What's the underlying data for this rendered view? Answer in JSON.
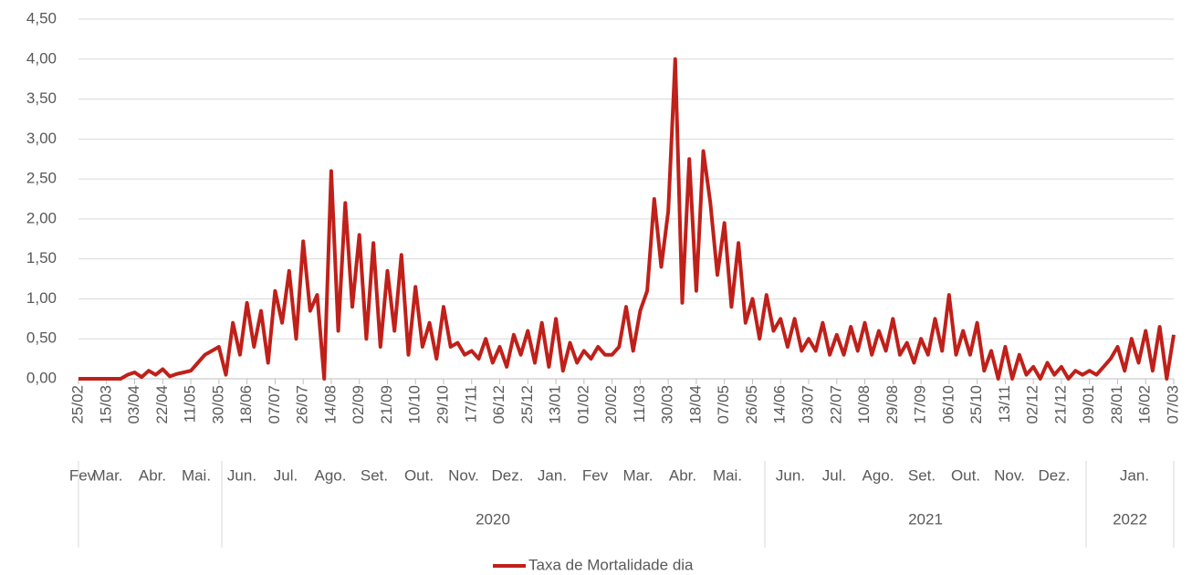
{
  "chart_data": {
    "type": "line",
    "categories": [
      "25/02",
      null,
      null,
      null,
      "15/03",
      null,
      null,
      null,
      "03/04",
      null,
      null,
      null,
      "22/04",
      null,
      null,
      null,
      "11/05",
      null,
      null,
      null,
      "30/05",
      null,
      null,
      null,
      "18/06",
      null,
      null,
      null,
      "07/07",
      null,
      null,
      null,
      "26/07",
      null,
      null,
      null,
      "14/08",
      null,
      null,
      null,
      "02/09",
      null,
      null,
      null,
      "21/09",
      null,
      null,
      null,
      "10/10",
      null,
      null,
      null,
      "29/10",
      null,
      null,
      null,
      "17/11",
      null,
      null,
      null,
      "06/12",
      null,
      null,
      null,
      "25/12",
      null,
      null,
      null,
      "13/01",
      null,
      null,
      null,
      "01/02",
      null,
      null,
      null,
      "20/02",
      null,
      null,
      null,
      "11/03",
      null,
      null,
      null,
      "30/03",
      null,
      null,
      null,
      "18/04",
      null,
      null,
      null,
      "07/05",
      null,
      null,
      null,
      "26/05",
      null,
      null,
      null,
      "14/06",
      null,
      null,
      null,
      "03/07",
      null,
      null,
      null,
      "22/07",
      null,
      null,
      null,
      "10/08",
      null,
      null,
      null,
      "29/08",
      null,
      null,
      null,
      "17/09",
      null,
      null,
      null,
      "06/10",
      null,
      null,
      null,
      "25/10",
      null,
      null,
      null,
      "13/11",
      null,
      null,
      null,
      "02/12",
      null,
      null,
      null,
      "21/12",
      null,
      null,
      null,
      "09/01",
      null,
      null,
      null,
      "28/01",
      null,
      null,
      null,
      "16/02",
      null,
      null,
      null,
      "07/03"
    ],
    "series": [
      {
        "name": "Taxa de Mortalidade dia",
        "color": "#c0201a",
        "values": [
          0,
          0,
          0,
          0,
          0,
          0,
          0,
          0.05,
          0.08,
          0.02,
          0.1,
          0.05,
          0.12,
          0.03,
          0.06,
          0.08,
          0.1,
          0.2,
          0.3,
          0.35,
          0.4,
          0.05,
          0.7,
          0.3,
          0.95,
          0.4,
          0.85,
          0.2,
          1.1,
          0.7,
          1.35,
          0.5,
          1.72,
          0.85,
          1.05,
          0,
          2.6,
          0.6,
          2.2,
          0.9,
          1.8,
          0.5,
          1.7,
          0.4,
          1.35,
          0.6,
          1.55,
          0.3,
          1.15,
          0.4,
          0.7,
          0.25,
          0.9,
          0.4,
          0.45,
          0.3,
          0.35,
          0.25,
          0.5,
          0.2,
          0.4,
          0.15,
          0.55,
          0.3,
          0.6,
          0.2,
          0.7,
          0.15,
          0.75,
          0.1,
          0.45,
          0.2,
          0.35,
          0.25,
          0.4,
          0.3,
          0.3,
          0.4,
          0.9,
          0.35,
          0.85,
          1.1,
          2.25,
          1.4,
          2.1,
          4.0,
          0.95,
          2.75,
          1.1,
          2.85,
          2.2,
          1.3,
          1.95,
          0.9,
          1.7,
          0.7,
          1.0,
          0.5,
          1.05,
          0.6,
          0.75,
          0.4,
          0.75,
          0.35,
          0.5,
          0.35,
          0.7,
          0.3,
          0.55,
          0.3,
          0.65,
          0.35,
          0.7,
          0.3,
          0.6,
          0.35,
          0.75,
          0.3,
          0.45,
          0.2,
          0.5,
          0.3,
          0.75,
          0.35,
          1.05,
          0.3,
          0.6,
          0.3,
          0.7,
          0.1,
          0.35,
          0,
          0.4,
          0,
          0.3,
          0.05,
          0.15,
          0,
          0.2,
          0.05,
          0.15,
          0,
          0.1,
          0.05,
          0.1,
          0.05,
          0.15,
          0.25,
          0.4,
          0.1,
          0.5,
          0.2,
          0.6,
          0.1,
          0.65,
          0,
          0.55
        ]
      }
    ],
    "months": [
      "Fev",
      "Mar.",
      "Abr.",
      "Mai.",
      "Jun.",
      "Jul.",
      "Ago.",
      "Set.",
      "Out.",
      "Nov.",
      "Dez.",
      "Jan.",
      "Fev",
      "Mar.",
      "Abr.",
      "Mai.",
      "Jun.",
      "Jul.",
      "Ago.",
      "Set.",
      "Out.",
      "Nov.",
      "Dez.",
      "Jan."
    ],
    "years": [
      "2020",
      "2021",
      "2022"
    ],
    "ylim": [
      0,
      4.5
    ],
    "yticks": [
      {
        "value": 0,
        "label": "0,00"
      },
      {
        "value": 0.5,
        "label": "0,50"
      },
      {
        "value": 1,
        "label": "1,00"
      },
      {
        "value": 1.5,
        "label": "1,50"
      },
      {
        "value": 2,
        "label": "2,00"
      },
      {
        "value": 2.5,
        "label": "2,50"
      },
      {
        "value": 3,
        "label": "3,00"
      },
      {
        "value": 3.5,
        "label": "3,50"
      },
      {
        "value": 4,
        "label": "4,00"
      },
      {
        "value": 4.5,
        "label": "4,50"
      }
    ],
    "grid": true,
    "legend": "bottom"
  }
}
